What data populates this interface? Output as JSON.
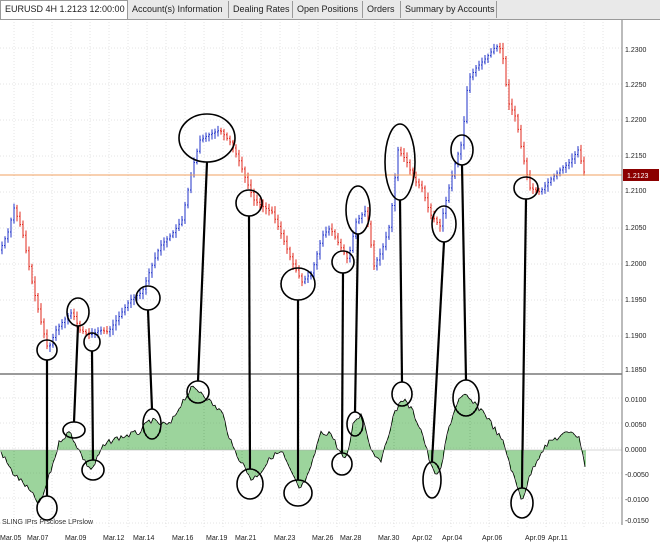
{
  "tabs": [
    {
      "label": "EURUSD 4H 1.2123 12:00:00",
      "active": true
    },
    {
      "label": "Account(s) Information",
      "active": false
    },
    {
      "label": "Dealing Rates",
      "active": false
    },
    {
      "label": "Open Positions",
      "active": false
    },
    {
      "label": "Orders",
      "active": false
    },
    {
      "label": "Summary by Accounts",
      "active": false
    }
  ],
  "price_panel": {
    "y_ticks": [
      "1.2300",
      "1.2250",
      "1.2200",
      "1.2150",
      "1.2100",
      "1.2050",
      "1.2000",
      "1.1950",
      "1.1900",
      "1.1850"
    ],
    "current_price_label": "1.2123",
    "current_price": 1.2123,
    "colors": {
      "up": "#2033c8",
      "down": "#e0281e",
      "current_line": "#f0a060",
      "label_bg": "#8b0000"
    }
  },
  "indicator_panel": {
    "label": "SLING IPrs Prsclose LPrslow",
    "y_ticks": [
      "0.0100",
      "0.0050",
      "0.0000",
      "-0.0050",
      "-0.0100",
      "-0.0150"
    ],
    "colors": {
      "line": "#000000",
      "hist": "#3aa83a"
    }
  },
  "x_axis": {
    "labels": [
      "Mar.05",
      "Mar.07",
      "Mar.09",
      "Mar.12",
      "Mar.14",
      "Mar.16",
      "Mar.19",
      "Mar.21",
      "Mar.23",
      "Mar.26",
      "Mar.28",
      "Mar.30",
      "Apr.02",
      "Apr.04",
      "Apr.06",
      "Apr.09",
      "Apr.11"
    ]
  }
}
